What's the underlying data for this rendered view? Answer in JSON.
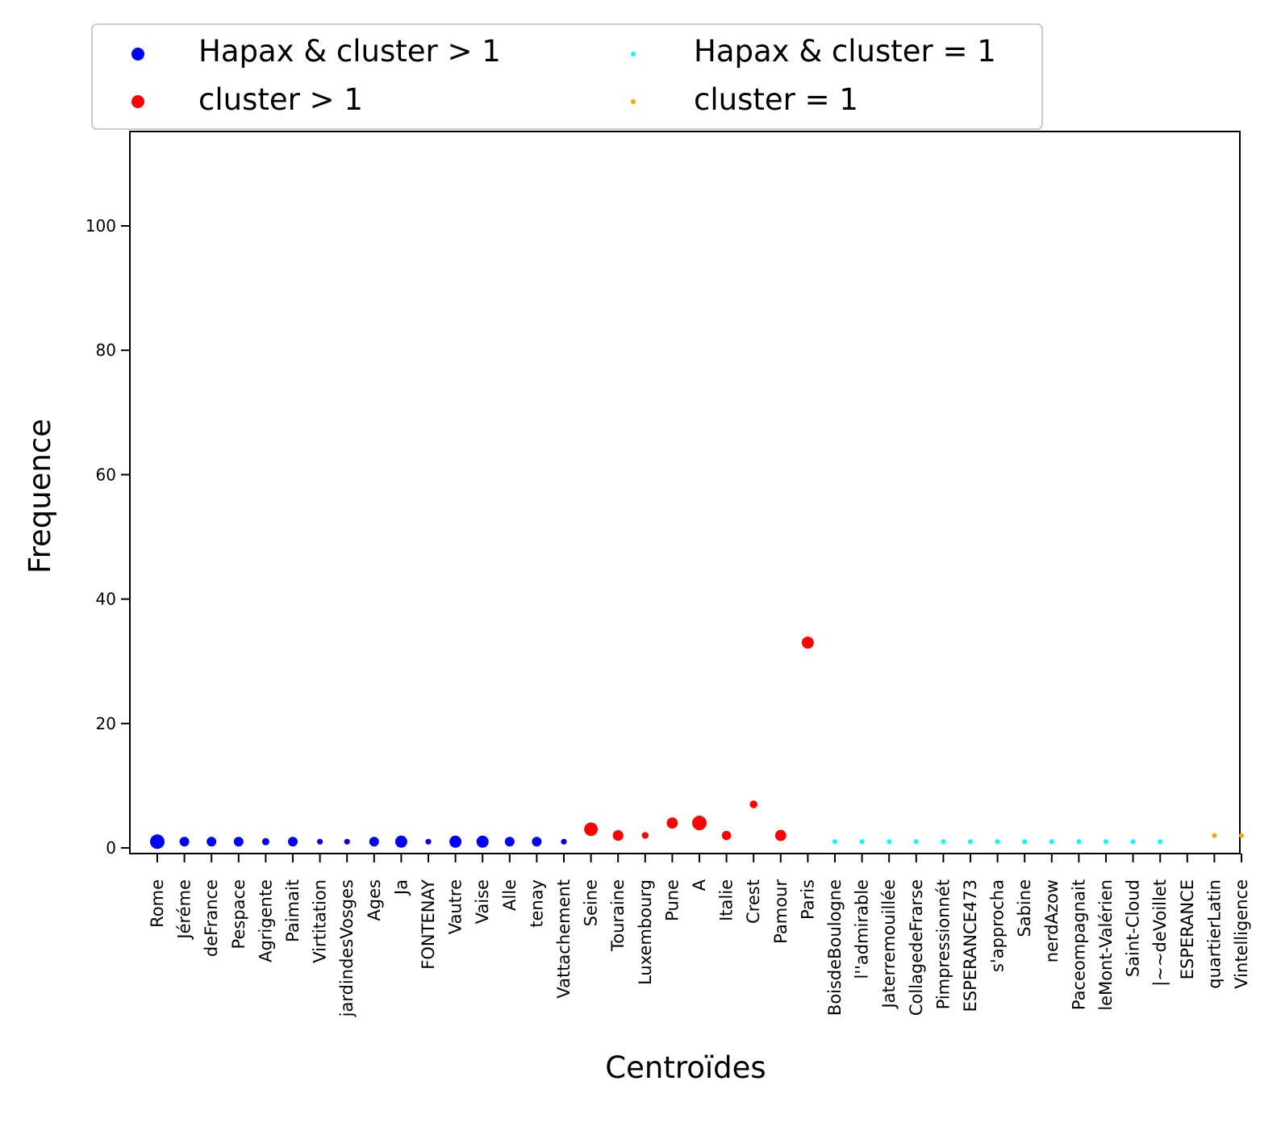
{
  "chart_data": {
    "type": "scatter",
    "title": "",
    "xlabel": "Centroïdes",
    "ylabel": "Frequence",
    "ylim": [
      -1,
      114
    ],
    "yticks": [
      0,
      20,
      40,
      60,
      80,
      100
    ],
    "grid": false,
    "legend_placement": "top, above plot, 2 columns",
    "categories": [
      "Rome",
      "Jéréme",
      "deFrance",
      "Pespace",
      "Agrigente",
      "Paimait",
      "Virtitation",
      "jardindesVosges",
      "Ages",
      "Ja",
      "FONTENAY",
      "Vautre",
      "Vaise",
      "Alle",
      "tenay",
      "Vattachement",
      "Seine",
      "Touraine",
      "Luxembourg",
      "Pune",
      "A",
      "Italie",
      "Crest",
      "Pamour",
      "Paris",
      "BoisdeBoulogne",
      "l''admirable",
      "Jaterremouillée",
      "CollagedeFrarse",
      "Pimpressionnét",
      "ESPERANCE473",
      "s'approcha",
      "Sabine",
      "nerdAzow",
      "Paceompagnait",
      "leMont-Valérien",
      "Saint-Cloud",
      "|~~deVoillet",
      "ESPERANCE",
      "quartierLatin",
      "Vintelligence"
    ],
    "series": [
      {
        "name": "Hapax & cluster > 1",
        "color": "#0000ff",
        "points": [
          {
            "x": "Rome",
            "y": 1,
            "size": 3
          },
          {
            "x": "Jéréme",
            "y": 1,
            "size": 2
          },
          {
            "x": "deFrance",
            "y": 1,
            "size": 2
          },
          {
            "x": "Pespace",
            "y": 1,
            "size": 2
          },
          {
            "x": "Agrigente",
            "y": 1,
            "size": 1.5
          },
          {
            "x": "Paimait",
            "y": 1,
            "size": 2
          },
          {
            "x": "Virtitation",
            "y": 1,
            "size": 1.2
          },
          {
            "x": "jardindesVosges",
            "y": 1,
            "size": 1.2
          },
          {
            "x": "Ages",
            "y": 1,
            "size": 2
          },
          {
            "x": "Ja",
            "y": 1,
            "size": 2.5
          },
          {
            "x": "FONTENAY",
            "y": 1,
            "size": 1.2
          },
          {
            "x": "Vautre",
            "y": 1,
            "size": 2.5
          },
          {
            "x": "Vaise",
            "y": 1,
            "size": 2.5
          },
          {
            "x": "Alle",
            "y": 1,
            "size": 2
          },
          {
            "x": "tenay",
            "y": 1,
            "size": 2
          },
          {
            "x": "Vattachement",
            "y": 1,
            "size": 1.2
          }
        ]
      },
      {
        "name": "cluster > 1",
        "color": "#ff0000",
        "points": [
          {
            "x": "Seine",
            "y": 3,
            "size": 2.8
          },
          {
            "x": "Touraine",
            "y": 2,
            "size": 2.2
          },
          {
            "x": "Luxembourg",
            "y": 2,
            "size": 1.4
          },
          {
            "x": "Pune",
            "y": 4,
            "size": 2.3
          },
          {
            "x": "A",
            "y": 4,
            "size": 3
          },
          {
            "x": "Italie",
            "y": 2,
            "size": 1.9
          },
          {
            "x": "Crest",
            "y": 7,
            "size": 1.6
          },
          {
            "x": "Pamour",
            "y": 2,
            "size": 2.3
          },
          {
            "x": "Paris",
            "y": 33,
            "size": 2.5
          }
        ]
      },
      {
        "name": "Hapax & cluster = 1",
        "color": "#00ffff",
        "points": [
          {
            "x": "BoisdeBoulogne",
            "y": 1,
            "size": 1
          },
          {
            "x": "l''admirable",
            "y": 1,
            "size": 1
          },
          {
            "x": "Jaterremouillée",
            "y": 1,
            "size": 1
          },
          {
            "x": "CollagedeFrarse",
            "y": 1,
            "size": 1
          },
          {
            "x": "Pimpressionnét",
            "y": 1,
            "size": 1
          },
          {
            "x": "ESPERANCE473",
            "y": 1,
            "size": 1
          },
          {
            "x": "s'approcha",
            "y": 1,
            "size": 1
          },
          {
            "x": "Sabine",
            "y": 1,
            "size": 1
          },
          {
            "x": "nerdAzow",
            "y": 1,
            "size": 1
          },
          {
            "x": "Paceompagnait",
            "y": 1,
            "size": 1
          },
          {
            "x": "leMont-Valérien",
            "y": 1,
            "size": 1
          },
          {
            "x": "Saint-Cloud",
            "y": 1,
            "size": 1
          },
          {
            "x": "|~~deVoillet",
            "y": 1,
            "size": 1
          }
        ]
      },
      {
        "name": "cluster = 1",
        "color": "#ffa500",
        "points": [
          {
            "x": "quartierLatin",
            "y": 2,
            "size": 1
          },
          {
            "x": "Vintelligence",
            "y": 2,
            "size": 1
          }
        ]
      }
    ]
  }
}
